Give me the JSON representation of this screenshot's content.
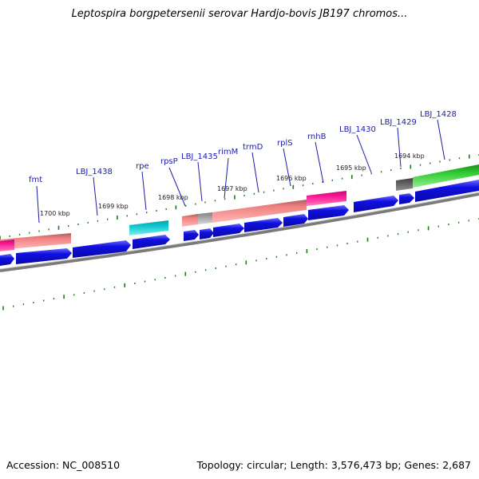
{
  "title": "Leptospira borgpetersenii serovar Hardjo-bovis JB197 chromos...",
  "footer": {
    "accession": "Accession: NC_008510",
    "summary": "Topology: circular; Length: 3,576,473 bp; Genes: 2,687"
  },
  "colors": {
    "gene_blue": "#1010e0",
    "rrna_salmon": "#f08080",
    "pseudo_pink": "#ff1493",
    "cyan": "#10c8d0",
    "green": "#30c830",
    "gray": "#a0a0a0",
    "backbone": "#808080",
    "tick": "#207a20",
    "label": "#1c1ca8"
  },
  "kbp_labels": [
    "1700 kbp",
    "1699 kbp",
    "1698 kbp",
    "1697 kbp",
    "1696 kbp",
    "1695 kbp",
    "1694 kbp"
  ],
  "gene_labels": [
    "fmt",
    "LBJ_1438",
    "rpe",
    "rpsP",
    "LBJ_1435",
    "rimM",
    "trmD",
    "rplS",
    "rnhB",
    "LBJ_1430",
    "LBJ_1429",
    "LBJ_1428"
  ]
}
